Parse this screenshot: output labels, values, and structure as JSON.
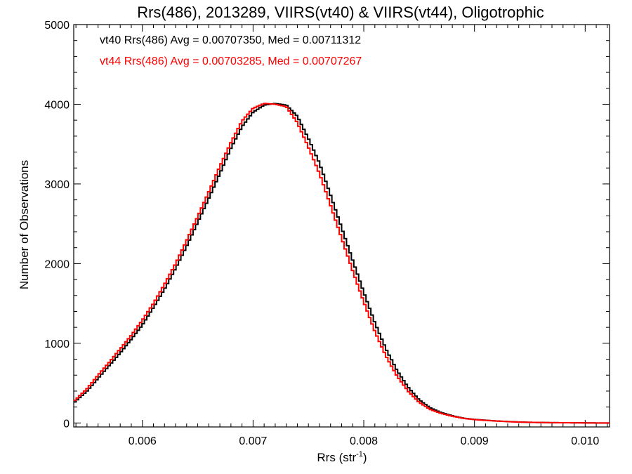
{
  "chart_data": {
    "type": "line",
    "style": "histogram-step",
    "title": "Rrs(486), 2013289, VIIRS(vt40) & VIIRS(vt44), Oligotrophic",
    "xlabel": "Rrs (str",
    "xlabel_superscript": "-1",
    "xlabel_suffix": ")",
    "ylabel": "Number of Observations",
    "xlim": [
      0.00538,
      0.01022
    ],
    "ylim": [
      -50,
      5000
    ],
    "x_ticks": [
      0.006,
      0.007,
      0.008,
      0.009,
      0.01
    ],
    "x_tick_labels": [
      "0.006",
      "0.007",
      "0.008",
      "0.009",
      "0.010"
    ],
    "y_ticks": [
      0,
      1000,
      2000,
      3000,
      4000,
      5000
    ],
    "y_tick_labels": [
      "0",
      "1000",
      "2000",
      "3000",
      "4000",
      "5000"
    ],
    "grid": false,
    "annotations": [
      {
        "text": "vt40 Rrs(486) Avg = 0.00707350, Med = 0.00711312",
        "color": "#000000"
      },
      {
        "text": "vt44 Rrs(486) Avg = 0.00703285, Med = 0.00707267",
        "color": "#ff0000"
      }
    ],
    "x": [
      0.00538,
      0.0055,
      0.0056,
      0.0057,
      0.0058,
      0.0059,
      0.006,
      0.0061,
      0.0062,
      0.0063,
      0.0064,
      0.0065,
      0.0066,
      0.0067,
      0.0068,
      0.0069,
      0.007,
      0.0071,
      0.0072,
      0.0073,
      0.0074,
      0.0075,
      0.0076,
      0.0077,
      0.0078,
      0.0079,
      0.008,
      0.0081,
      0.0082,
      0.0083,
      0.0084,
      0.0085,
      0.0086,
      0.0087,
      0.0088,
      0.0089,
      0.009,
      0.0091,
      0.0092,
      0.0093,
      0.0094,
      0.0095,
      0.0096,
      0.0097,
      0.0098,
      0.0099,
      0.01,
      0.0101,
      0.01022
    ],
    "series": [
      {
        "name": "vt40",
        "color": "#000000",
        "values": [
          250,
          400,
          560,
          720,
          880,
          1050,
          1230,
          1450,
          1680,
          1940,
          2220,
          2520,
          2820,
          3130,
          3450,
          3720,
          3900,
          3990,
          4010,
          3990,
          3850,
          3570,
          3260,
          2860,
          2450,
          2040,
          1640,
          1260,
          930,
          660,
          450,
          290,
          190,
          130,
          90,
          60,
          45,
          35,
          25,
          18,
          12,
          8,
          6,
          4,
          3,
          2,
          1,
          0,
          0
        ]
      },
      {
        "name": "vt44",
        "color": "#ff0000",
        "values": [
          270,
          430,
          600,
          760,
          930,
          1100,
          1290,
          1500,
          1740,
          2000,
          2290,
          2590,
          2900,
          3220,
          3520,
          3790,
          3950,
          4010,
          4000,
          3970,
          3770,
          3460,
          3130,
          2730,
          2320,
          1910,
          1520,
          1150,
          840,
          590,
          400,
          260,
          170,
          120,
          85,
          58,
          42,
          33,
          24,
          17,
          11,
          8,
          6,
          4,
          3,
          2,
          1,
          0,
          0
        ]
      }
    ]
  }
}
